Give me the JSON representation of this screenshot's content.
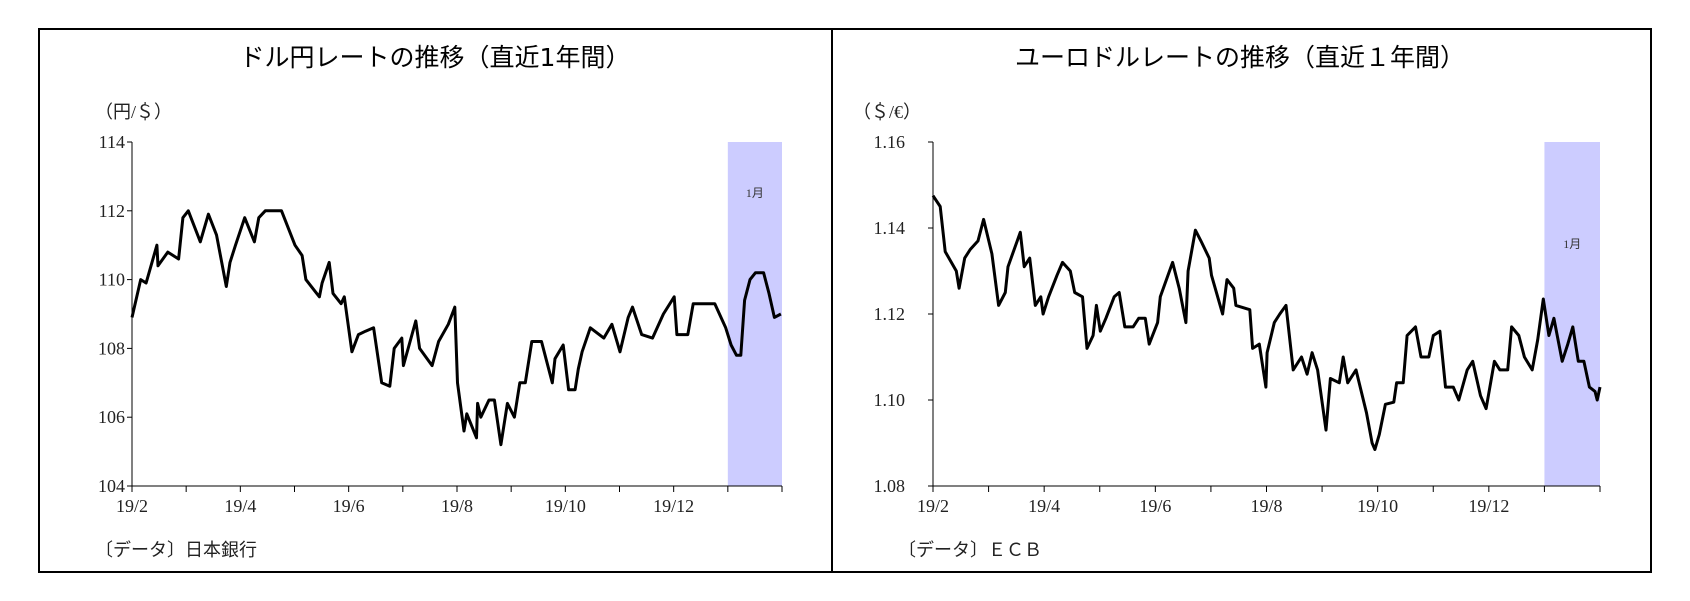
{
  "chart_data": [
    {
      "type": "line",
      "title": "ドル円レートの推移（直近1年間）",
      "ylabel": "（円/＄）",
      "source": "〔データ〕日本銀行",
      "ylim": [
        104,
        114
      ],
      "yticks": [
        "104",
        "106",
        "108",
        "110",
        "112",
        "114"
      ],
      "xlim": [
        0,
        12
      ],
      "xticks": [
        "19/2",
        "19/4",
        "19/6",
        "19/8",
        "19/10",
        "19/12"
      ],
      "highlight": {
        "label": "1月",
        "from": 11,
        "to": 12,
        "color": "#ccccff"
      },
      "line_color": "#000000",
      "points": [
        [
          0,
          108.9
        ],
        [
          0.16,
          110.0
        ],
        [
          0.26,
          109.9
        ],
        [
          0.46,
          111.0
        ],
        [
          0.48,
          110.4
        ],
        [
          0.66,
          110.8
        ],
        [
          0.86,
          110.6
        ],
        [
          0.94,
          111.8
        ],
        [
          1.04,
          112.0
        ],
        [
          1.26,
          111.1
        ],
        [
          1.41,
          111.9
        ],
        [
          1.56,
          111.3
        ],
        [
          1.74,
          109.8
        ],
        [
          1.81,
          110.5
        ],
        [
          1.91,
          111.0
        ],
        [
          2.08,
          111.8
        ],
        [
          2.26,
          111.1
        ],
        [
          2.34,
          111.8
        ],
        [
          2.46,
          112.0
        ],
        [
          2.76,
          112.0
        ],
        [
          2.86,
          111.6
        ],
        [
          3.01,
          111.0
        ],
        [
          3.14,
          110.7
        ],
        [
          3.21,
          110.0
        ],
        [
          3.41,
          109.6
        ],
        [
          3.46,
          109.5
        ],
        [
          3.51,
          109.9
        ],
        [
          3.64,
          110.5
        ],
        [
          3.71,
          109.6
        ],
        [
          3.86,
          109.3
        ],
        [
          3.92,
          109.5
        ],
        [
          4.06,
          107.9
        ],
        [
          4.18,
          108.4
        ],
        [
          4.31,
          108.5
        ],
        [
          4.46,
          108.6
        ],
        [
          4.61,
          107.0
        ],
        [
          4.76,
          106.9
        ],
        [
          4.84,
          108.0
        ],
        [
          4.98,
          108.3
        ],
        [
          5.01,
          107.5
        ],
        [
          5.24,
          108.8
        ],
        [
          5.31,
          108.0
        ],
        [
          5.54,
          107.5
        ],
        [
          5.66,
          108.2
        ],
        [
          5.84,
          108.7
        ],
        [
          5.96,
          109.2
        ],
        [
          6.01,
          107.0
        ],
        [
          6.13,
          105.6
        ],
        [
          6.18,
          106.1
        ],
        [
          6.36,
          105.4
        ],
        [
          6.38,
          106.4
        ],
        [
          6.44,
          106.0
        ],
        [
          6.59,
          106.5
        ],
        [
          6.69,
          106.5
        ],
        [
          6.81,
          105.2
        ],
        [
          6.93,
          106.4
        ],
        [
          7.06,
          106.0
        ],
        [
          7.16,
          107.0
        ],
        [
          7.26,
          107.0
        ],
        [
          7.38,
          108.2
        ],
        [
          7.56,
          108.2
        ],
        [
          7.76,
          107.0
        ],
        [
          7.81,
          107.7
        ],
        [
          7.96,
          108.1
        ],
        [
          8.06,
          106.8
        ],
        [
          8.18,
          106.8
        ],
        [
          8.24,
          107.4
        ],
        [
          8.31,
          107.9
        ],
        [
          8.46,
          108.6
        ],
        [
          8.71,
          108.3
        ],
        [
          8.86,
          108.7
        ],
        [
          9.01,
          107.9
        ],
        [
          9.16,
          108.9
        ],
        [
          9.24,
          109.2
        ],
        [
          9.41,
          108.4
        ],
        [
          9.61,
          108.3
        ],
        [
          9.81,
          109.0
        ],
        [
          10.01,
          109.5
        ],
        [
          10.06,
          108.4
        ],
        [
          10.26,
          108.4
        ],
        [
          10.36,
          109.3
        ],
        [
          10.56,
          109.3
        ],
        [
          10.76,
          109.3
        ],
        [
          10.96,
          108.6
        ],
        [
          11.06,
          108.1
        ],
        [
          11.16,
          107.8
        ],
        [
          11.24,
          107.8
        ],
        [
          11.31,
          109.4
        ],
        [
          11.41,
          110.0
        ],
        [
          11.51,
          110.2
        ],
        [
          11.66,
          110.2
        ],
        [
          11.76,
          109.6
        ],
        [
          11.86,
          108.9
        ],
        [
          11.98,
          109.0
        ]
      ]
    },
    {
      "type": "line",
      "title": "ユーロドルレートの推移（直近１年間）",
      "ylabel": "（＄/€）",
      "source": "〔データ〕ＥＣＢ",
      "ylim": [
        1.08,
        1.16
      ],
      "yticks": [
        "1.08",
        "1.10",
        "1.12",
        "1.14",
        "1.16"
      ],
      "xlim": [
        0,
        12
      ],
      "xticks": [
        "19/2",
        "19/4",
        "19/6",
        "19/8",
        "19/10",
        "19/12"
      ],
      "highlight": {
        "label": "1月",
        "from": 11,
        "to": 12,
        "color": "#ccccff"
      },
      "line_color": "#000000",
      "points": [
        [
          0,
          1.1475
        ],
        [
          0.13,
          1.145
        ],
        [
          0.22,
          1.1345
        ],
        [
          0.42,
          1.13
        ],
        [
          0.47,
          1.126
        ],
        [
          0.57,
          1.133
        ],
        [
          0.67,
          1.135
        ],
        [
          0.81,
          1.137
        ],
        [
          0.91,
          1.142
        ],
        [
          1.06,
          1.134
        ],
        [
          1.18,
          1.122
        ],
        [
          1.3,
          1.125
        ],
        [
          1.35,
          1.131
        ],
        [
          1.57,
          1.139
        ],
        [
          1.64,
          1.131
        ],
        [
          1.74,
          1.133
        ],
        [
          1.84,
          1.122
        ],
        [
          1.94,
          1.124
        ],
        [
          1.98,
          1.12
        ],
        [
          2.08,
          1.124
        ],
        [
          2.23,
          1.129
        ],
        [
          2.33,
          1.132
        ],
        [
          2.47,
          1.13
        ],
        [
          2.55,
          1.125
        ],
        [
          2.69,
          1.124
        ],
        [
          2.77,
          1.112
        ],
        [
          2.88,
          1.115
        ],
        [
          2.94,
          1.122
        ],
        [
          3.01,
          1.116
        ],
        [
          3.11,
          1.119
        ],
        [
          3.26,
          1.124
        ],
        [
          3.35,
          1.125
        ],
        [
          3.45,
          1.117
        ],
        [
          3.6,
          1.117
        ],
        [
          3.7,
          1.119
        ],
        [
          3.82,
          1.119
        ],
        [
          3.89,
          1.113
        ],
        [
          4.04,
          1.118
        ],
        [
          4.09,
          1.124
        ],
        [
          4.31,
          1.132
        ],
        [
          4.43,
          1.126
        ],
        [
          4.55,
          1.118
        ],
        [
          4.59,
          1.13
        ],
        [
          4.72,
          1.1395
        ],
        [
          4.82,
          1.137
        ],
        [
          4.97,
          1.133
        ],
        [
          5.01,
          1.129
        ],
        [
          5.21,
          1.12
        ],
        [
          5.29,
          1.128
        ],
        [
          5.41,
          1.126
        ],
        [
          5.45,
          1.122
        ],
        [
          5.7,
          1.121
        ],
        [
          5.75,
          1.112
        ],
        [
          5.87,
          1.113
        ],
        [
          5.99,
          1.103
        ],
        [
          6.01,
          1.111
        ],
        [
          6.14,
          1.118
        ],
        [
          6.24,
          1.12
        ],
        [
          6.35,
          1.122
        ],
        [
          6.48,
          1.107
        ],
        [
          6.63,
          1.11
        ],
        [
          6.73,
          1.106
        ],
        [
          6.82,
          1.111
        ],
        [
          6.92,
          1.107
        ],
        [
          7.07,
          1.093
        ],
        [
          7.15,
          1.105
        ],
        [
          7.31,
          1.104
        ],
        [
          7.38,
          1.11
        ],
        [
          7.46,
          1.104
        ],
        [
          7.61,
          1.107
        ],
        [
          7.8,
          1.097
        ],
        [
          7.9,
          1.09
        ],
        [
          7.95,
          1.0885
        ],
        [
          8.03,
          1.092
        ],
        [
          8.14,
          1.099
        ],
        [
          8.29,
          1.0995
        ],
        [
          8.34,
          1.104
        ],
        [
          8.46,
          1.104
        ],
        [
          8.53,
          1.115
        ],
        [
          8.68,
          1.117
        ],
        [
          8.78,
          1.11
        ],
        [
          8.92,
          1.11
        ],
        [
          9.0,
          1.115
        ],
        [
          9.12,
          1.116
        ],
        [
          9.22,
          1.103
        ],
        [
          9.36,
          1.103
        ],
        [
          9.46,
          1.1
        ],
        [
          9.61,
          1.107
        ],
        [
          9.71,
          1.109
        ],
        [
          9.85,
          1.101
        ],
        [
          9.95,
          1.098
        ],
        [
          10.1,
          1.109
        ],
        [
          10.2,
          1.107
        ],
        [
          10.34,
          1.107
        ],
        [
          10.41,
          1.117
        ],
        [
          10.54,
          1.115
        ],
        [
          10.64,
          1.11
        ],
        [
          10.78,
          1.107
        ],
        [
          10.88,
          1.114
        ],
        [
          10.98,
          1.1235
        ],
        [
          11.08,
          1.115
        ],
        [
          11.17,
          1.119
        ],
        [
          11.32,
          1.109
        ],
        [
          11.42,
          1.113
        ],
        [
          11.51,
          1.117
        ],
        [
          11.61,
          1.109
        ],
        [
          11.71,
          1.109
        ],
        [
          11.81,
          1.103
        ],
        [
          11.91,
          1.102
        ],
        [
          11.95,
          1.1
        ],
        [
          12,
          1.103
        ]
      ]
    }
  ]
}
